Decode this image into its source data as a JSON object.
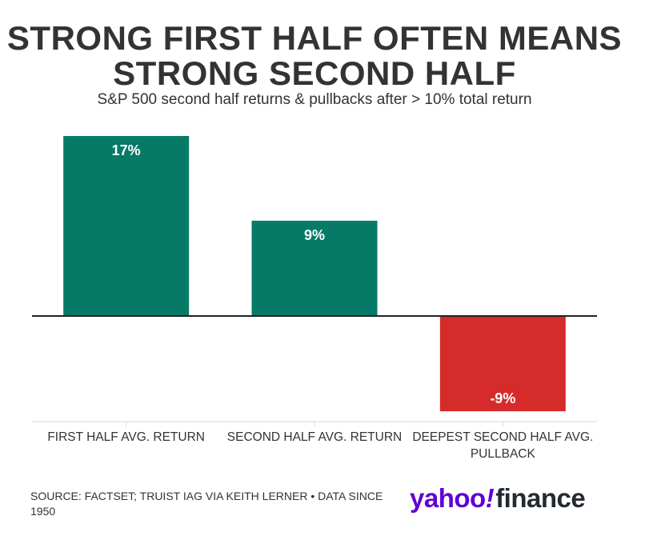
{
  "header": {
    "title_line1": "STRONG FIRST HALF OFTEN MEANS",
    "title_line2": "STRONG SECOND HALF",
    "subtitle": "S&P 500 second half returns & pullbacks after > 10% total return"
  },
  "chart_data": {
    "type": "bar",
    "title": "STRONG FIRST HALF OFTEN MEANS STRONG SECOND HALF",
    "subtitle": "S&P 500 second half returns & pullbacks after > 10% total return",
    "categories": [
      [
        "FIRST HALF AVG. RETURN"
      ],
      [
        "SECOND HALF AVG. RETURN"
      ],
      [
        "DEEPEST SECOND HALF AVG.",
        "PULLBACK"
      ]
    ],
    "values": [
      17,
      9,
      -9
    ],
    "data_labels": [
      "17%",
      "9%",
      "-9%"
    ],
    "colors": [
      "#067a67",
      "#067a67",
      "#d52b2b"
    ],
    "xlabel": "",
    "ylabel": "",
    "unit": "%",
    "ylim": [
      -9,
      17
    ],
    "grid": false
  },
  "footer": {
    "source": "SOURCE: FACTSET; TRUIST IAG VIA KEITH LERNER • DATA SINCE 1950",
    "logo_yahoo": "yahoo",
    "logo_bang": "!",
    "logo_finance": "finance"
  }
}
